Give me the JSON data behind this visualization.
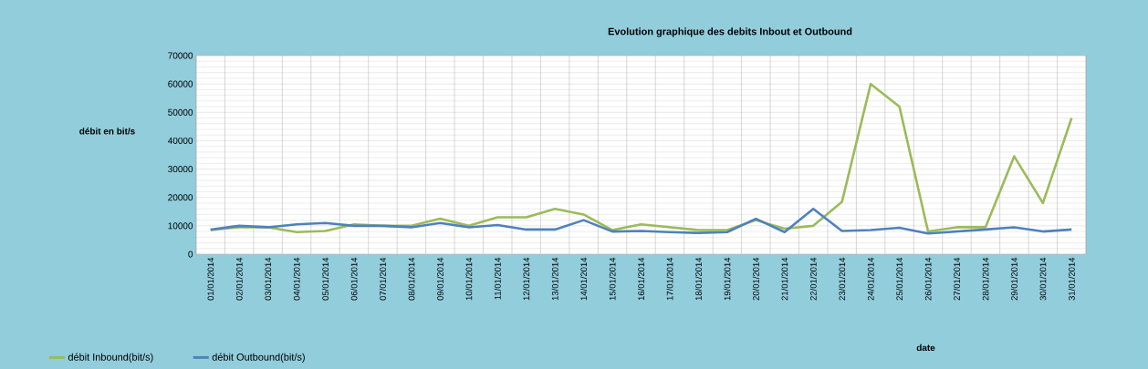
{
  "chart_data": {
    "type": "line",
    "title": "Evolution graphique des debits Inbout et Outbound",
    "xlabel": "date",
    "ylabel": "débit en bit/s",
    "categories": [
      "01/01/2014",
      "02/01/2014",
      "03/01/2014",
      "04/01/2014",
      "05/01/2014",
      "06/01/2014",
      "07/01/2014",
      "08/01/2014",
      "09/01/2014",
      "10/01/2014",
      "11/01/2014",
      "12/01/2014",
      "13/01/2014",
      "14/01/2014",
      "15/01/2014",
      "16/01/2014",
      "17/01/2014",
      "18/01/2014",
      "19/01/2014",
      "20/01/2014",
      "21/01/2014",
      "22/01/2014",
      "23/01/2014",
      "24/01/2014",
      "25/01/2014",
      "26/01/2014",
      "27/01/2014",
      "28/01/2014",
      "29/01/2014",
      "30/01/2014",
      "31/01/2014"
    ],
    "series": [
      {
        "name": "débit Inbound(bit/s)",
        "color": "#9bbb59",
        "values": [
          8500,
          9500,
          9500,
          7800,
          8200,
          10500,
          10000,
          10000,
          12500,
          10000,
          13000,
          13000,
          16000,
          14000,
          8500,
          10500,
          9500,
          8500,
          8500,
          12000,
          9000,
          10000,
          18500,
          60000,
          52000,
          8000,
          9500,
          9500,
          34500,
          18000,
          48000
        ]
      },
      {
        "name": "débit Outbound(bit/s)",
        "color": "#4f81bd",
        "values": [
          8700,
          10000,
          9500,
          10500,
          11000,
          10000,
          10000,
          9500,
          11000,
          9500,
          10300,
          8700,
          8700,
          12000,
          8000,
          8200,
          7800,
          7500,
          7800,
          12500,
          7800,
          16000,
          8200,
          8500,
          9300,
          7300,
          8000,
          8700,
          9500,
          8000,
          8700
        ]
      }
    ],
    "ylim": [
      0,
      70000
    ],
    "yticks": [
      0,
      10000,
      20000,
      30000,
      40000,
      50000,
      60000,
      70000
    ],
    "grid": true,
    "legend": "bottom left",
    "marker": "none",
    "line_style": "solid"
  }
}
